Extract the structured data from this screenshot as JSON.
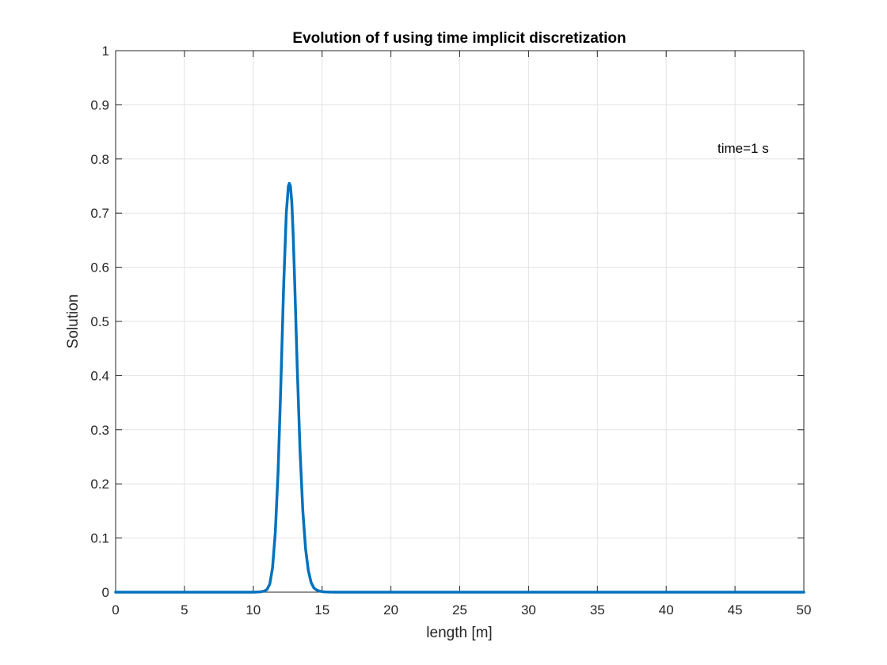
{
  "chart_data": {
    "type": "line",
    "title": "Evolution of f using time implicit discretization",
    "xlabel": "length [m]",
    "ylabel": "Solution",
    "xlim": [
      0,
      50
    ],
    "ylim": [
      0,
      1
    ],
    "xticks": [
      0,
      5,
      10,
      15,
      20,
      25,
      30,
      35,
      40,
      45,
      50
    ],
    "yticks": [
      0,
      0.1,
      0.2,
      0.3,
      0.4,
      0.5,
      0.6,
      0.7,
      0.8,
      0.9,
      1
    ],
    "xtick_labels": [
      "0",
      "5",
      "10",
      "15",
      "20",
      "25",
      "30",
      "35",
      "40",
      "45",
      "50"
    ],
    "ytick_labels": [
      "0",
      "0.1",
      "0.2",
      "0.3",
      "0.4",
      "0.5",
      "0.6",
      "0.7",
      "0.8",
      "0.9",
      "1"
    ],
    "grid": true,
    "annotation": "time=1 s",
    "line_color": "#0072BD",
    "series": [
      {
        "x": [
          0,
          5,
          10,
          10.5,
          10.8,
          11.0,
          11.2,
          11.4,
          11.6,
          11.8,
          12.0,
          12.2,
          12.4,
          12.55,
          12.62,
          12.7,
          12.8,
          12.9,
          13.0,
          13.2,
          13.4,
          13.6,
          13.8,
          14.0,
          14.2,
          14.4,
          14.6,
          14.8,
          15.0,
          15.3,
          15.6,
          16,
          20,
          30,
          40,
          50
        ],
        "y": [
          0,
          0,
          0,
          0.0005,
          0.002,
          0.005,
          0.015,
          0.045,
          0.11,
          0.22,
          0.38,
          0.56,
          0.7,
          0.75,
          0.755,
          0.75,
          0.72,
          0.66,
          0.58,
          0.41,
          0.26,
          0.15,
          0.08,
          0.04,
          0.018,
          0.008,
          0.004,
          0.002,
          0.001,
          0.0004,
          0.0001,
          0,
          0,
          0,
          0,
          0
        ]
      }
    ]
  }
}
